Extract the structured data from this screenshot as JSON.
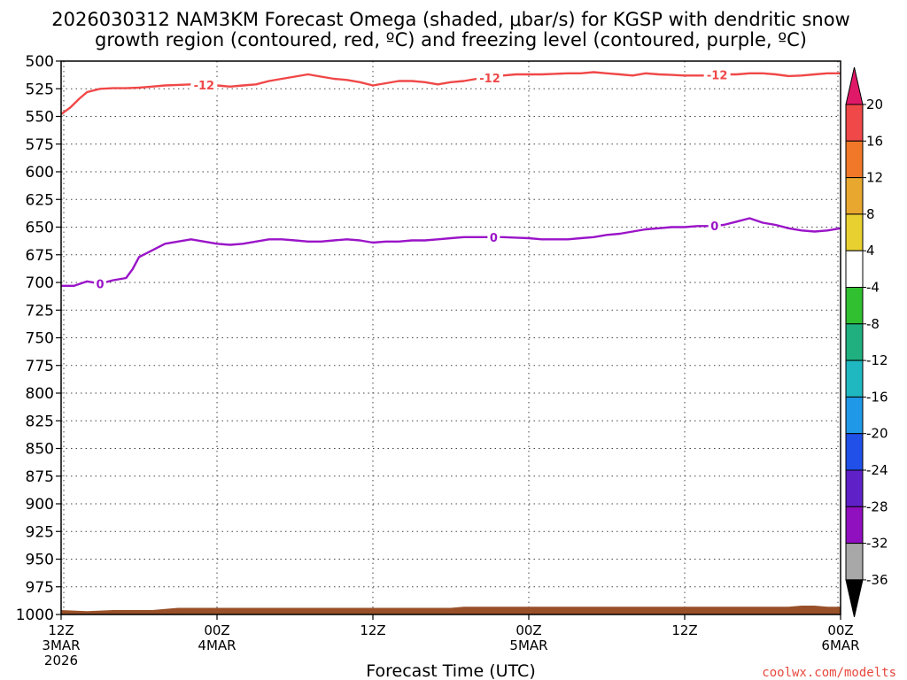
{
  "chart_data": {
    "type": "line",
    "title_line1": "2026030312 NAM3KM Forecast Omega (shaded, μbar/s) for KGSP with dendritic snow",
    "title_line2": "growth region (contoured, red, ºC) and freezing level (contoured, purple, ºC)",
    "xlabel": "Forecast Time (UTC)",
    "ylabel": "",
    "x_range": [
      0,
      60
    ],
    "y_range": [
      500,
      1000
    ],
    "y_ticks": [
      "500",
      "525",
      "550",
      "575",
      "600",
      "625",
      "650",
      "675",
      "700",
      "725",
      "750",
      "775",
      "800",
      "825",
      "850",
      "875",
      "900",
      "925",
      "950",
      "975",
      "1000"
    ],
    "x_ticks": [
      {
        "h": 0,
        "line1": "12Z",
        "line2": "3MAR",
        "line3": "2026"
      },
      {
        "h": 12,
        "line1": "00Z",
        "line2": "4MAR",
        "line3": ""
      },
      {
        "h": 24,
        "line1": "12Z",
        "line2": "",
        "line3": ""
      },
      {
        "h": 36,
        "line1": "00Z",
        "line2": "5MAR",
        "line3": ""
      },
      {
        "h": 48,
        "line1": "12Z",
        "line2": "",
        "line3": ""
      },
      {
        "h": 60,
        "line1": "00Z",
        "line2": "6MAR",
        "line3": ""
      }
    ],
    "series": [
      {
        "name": "-12 C isotherm (dendritic growth region)",
        "color": "#f04848",
        "label_text": "-12",
        "label_hours": [
          11,
          33,
          50.5
        ],
        "values": [
          [
            0,
            548
          ],
          [
            0.7,
            542
          ],
          [
            1.4,
            534
          ],
          [
            2,
            528
          ],
          [
            3,
            525
          ],
          [
            4,
            524.5
          ],
          [
            5,
            524.5
          ],
          [
            6,
            524
          ],
          [
            7,
            523
          ],
          [
            8,
            522
          ],
          [
            9,
            521.5
          ],
          [
            10,
            521
          ],
          [
            11,
            521.5
          ],
          [
            12,
            522
          ],
          [
            13,
            523
          ],
          [
            14,
            522
          ],
          [
            15,
            521
          ],
          [
            16,
            518
          ],
          [
            17,
            516
          ],
          [
            18,
            514
          ],
          [
            19,
            512
          ],
          [
            20,
            514
          ],
          [
            21,
            516
          ],
          [
            22,
            517
          ],
          [
            23,
            519
          ],
          [
            24,
            522
          ],
          [
            25,
            520
          ],
          [
            26,
            518
          ],
          [
            27,
            518
          ],
          [
            28,
            519
          ],
          [
            29,
            521
          ],
          [
            30,
            519
          ],
          [
            31,
            518
          ],
          [
            32,
            516
          ],
          [
            33,
            515
          ],
          [
            34,
            513
          ],
          [
            35,
            512
          ],
          [
            36,
            512
          ],
          [
            37,
            512
          ],
          [
            38,
            511.5
          ],
          [
            39,
            511
          ],
          [
            40,
            511
          ],
          [
            41,
            510
          ],
          [
            42,
            511
          ],
          [
            43,
            512
          ],
          [
            44,
            513
          ],
          [
            45,
            511
          ],
          [
            46,
            512
          ],
          [
            47,
            512.5
          ],
          [
            48,
            513
          ],
          [
            49,
            513
          ],
          [
            50,
            513
          ],
          [
            51,
            512
          ],
          [
            52,
            512
          ],
          [
            53,
            511
          ],
          [
            54,
            511
          ],
          [
            55,
            512
          ],
          [
            56,
            513.5
          ],
          [
            57,
            513
          ],
          [
            58,
            512
          ],
          [
            59,
            511
          ],
          [
            60,
            511
          ]
        ]
      },
      {
        "name": "0 C isotherm (freezing level)",
        "color": "#9a14c8",
        "label_text": "0",
        "label_hours": [
          3,
          33.3,
          50.3
        ],
        "values": [
          [
            0,
            703
          ],
          [
            1,
            703
          ],
          [
            2,
            699
          ],
          [
            3,
            701
          ],
          [
            4,
            698
          ],
          [
            5,
            696
          ],
          [
            5.5,
            688
          ],
          [
            6,
            677
          ],
          [
            7,
            671
          ],
          [
            8,
            665
          ],
          [
            9,
            663
          ],
          [
            10,
            661
          ],
          [
            11,
            663
          ],
          [
            12,
            665
          ],
          [
            13,
            666
          ],
          [
            14,
            665
          ],
          [
            15,
            663
          ],
          [
            16,
            661
          ],
          [
            17,
            661
          ],
          [
            18,
            662
          ],
          [
            19,
            663
          ],
          [
            20,
            663
          ],
          [
            21,
            662
          ],
          [
            22,
            661
          ],
          [
            23,
            662
          ],
          [
            24,
            664
          ],
          [
            25,
            663
          ],
          [
            26,
            663
          ],
          [
            27,
            662
          ],
          [
            28,
            662
          ],
          [
            29,
            661
          ],
          [
            30,
            660
          ],
          [
            31,
            659
          ],
          [
            32,
            659
          ],
          [
            33,
            659
          ],
          [
            34,
            659
          ],
          [
            35,
            659.5
          ],
          [
            36,
            660
          ],
          [
            37,
            661
          ],
          [
            38,
            661
          ],
          [
            39,
            661
          ],
          [
            40,
            660
          ],
          [
            41,
            659
          ],
          [
            42,
            657
          ],
          [
            43,
            656
          ],
          [
            44,
            654
          ],
          [
            45,
            652
          ],
          [
            46,
            651
          ],
          [
            47,
            650
          ],
          [
            48,
            650
          ],
          [
            49,
            649
          ],
          [
            50,
            649
          ],
          [
            51,
            648
          ],
          [
            52,
            645
          ],
          [
            53,
            642
          ],
          [
            54,
            646
          ],
          [
            55,
            648
          ],
          [
            56,
            651
          ],
          [
            57,
            653
          ],
          [
            58,
            654
          ],
          [
            59,
            653
          ],
          [
            60,
            651
          ]
        ]
      }
    ],
    "terrain": {
      "name": "surface (below ground)",
      "color": "#995028",
      "values": [
        [
          0,
          996
        ],
        [
          2,
          997
        ],
        [
          4,
          996
        ],
        [
          7,
          996
        ],
        [
          8,
          995
        ],
        [
          9,
          994
        ],
        [
          14,
          994
        ],
        [
          20,
          994
        ],
        [
          26,
          994
        ],
        [
          30,
          994
        ],
        [
          31,
          993
        ],
        [
          38,
          993
        ],
        [
          44,
          993
        ],
        [
          50,
          993
        ],
        [
          56,
          993
        ],
        [
          57,
          992
        ],
        [
          58,
          992
        ],
        [
          59,
          993
        ],
        [
          60,
          993
        ]
      ]
    },
    "colorbar": {
      "levels": [
        "20",
        "16",
        "12",
        "8",
        "4",
        "-4",
        "-8",
        "-12",
        "-16",
        "-20",
        "-24",
        "-28",
        "-32",
        "-36"
      ],
      "colors": [
        "#e01868",
        "#f04848",
        "#f07828",
        "#e8a830",
        "#e8d030",
        "#ffffff",
        "#30c030",
        "#20b080",
        "#20b8c0",
        "#2098e8",
        "#2050e8",
        "#6020c8",
        "#9010c0",
        "#a8a8a8",
        "#000000"
      ]
    },
    "credit": "coolwx.com/modelts"
  }
}
